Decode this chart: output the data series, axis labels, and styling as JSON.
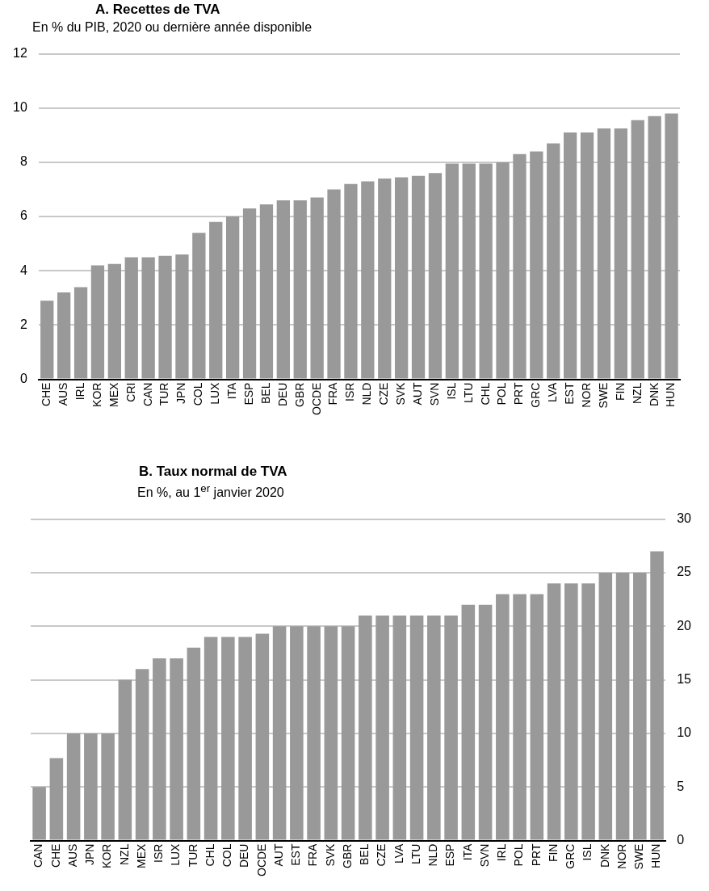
{
  "chart_data": [
    {
      "type": "bar",
      "title": "A. Recettes de TVA",
      "subtitle": "En % du PIB, 2020 ou dernière année disponible",
      "categories": [
        "CHE",
        "AUS",
        "IRL",
        "KOR",
        "MEX",
        "CRI",
        "CAN",
        "TUR",
        "JPN",
        "COL",
        "LUX",
        "ITA",
        "ESP",
        "BEL",
        "DEU",
        "GBR",
        "OCDE",
        "FRA",
        "ISR",
        "NLD",
        "CZE",
        "SVK",
        "AUT",
        "SVN",
        "ISL",
        "LTU",
        "CHL",
        "POL",
        "PRT",
        "GRC",
        "LVA",
        "EST",
        "NOR",
        "SWE",
        "FIN",
        "NZL",
        "DNK",
        "HUN"
      ],
      "series": [
        {
          "color": "#999999",
          "values": [
            2.9,
            3.2,
            3.4,
            4.2,
            4.25,
            4.5,
            4.5,
            4.55,
            4.6,
            5.4,
            5.8,
            6.0,
            6.3,
            6.45,
            6.6,
            6.6,
            6.7,
            7.0,
            7.2,
            7.3,
            7.4,
            7.45,
            7.5,
            7.6,
            7.95,
            7.95,
            7.95,
            8.0,
            8.3,
            8.4,
            8.7,
            9.1,
            9.1,
            9.25,
            9.25,
            9.55,
            9.7,
            9.8
          ]
        }
      ],
      "ylim": [
        0,
        12
      ],
      "yticks": [
        0,
        2,
        4,
        6,
        8,
        10,
        12
      ],
      "grid": "y"
    },
    {
      "type": "bar",
      "title": "B. Taux normal de TVA",
      "subtitle": "En %, au 1$^{er}$ janvier 2020",
      "categories": [
        "CAN",
        "CHE",
        "AUS",
        "JPN",
        "KOR",
        "NZL",
        "MEX",
        "ISR",
        "LUX",
        "TUR",
        "CHL",
        "COL",
        "DEU",
        "OCDE",
        "AUT",
        "EST",
        "FRA",
        "SVK",
        "GBR",
        "BEL",
        "CZE",
        "LVA",
        "LTU",
        "NLD",
        "ESP",
        "ITA",
        "SVN",
        "IRL",
        "POL",
        "PRT",
        "FIN",
        "GRC",
        "ISL",
        "DNK",
        "NOR",
        "SWE",
        "HUN"
      ],
      "series": [
        {
          "color": "#999999",
          "axis": "y2",
          "values": [
            5,
            7.7,
            10,
            10,
            10,
            15,
            16,
            17,
            17,
            18,
            19,
            19,
            19,
            19.3,
            20,
            20,
            20,
            20,
            20,
            21,
            21,
            21,
            21,
            21,
            21,
            22,
            22,
            23,
            23,
            23,
            24,
            24,
            24,
            25,
            25,
            25,
            27
          ]
        }
      ],
      "y2lim": [
        0,
        30
      ],
      "y2ticks": [
        0,
        5,
        10,
        15,
        20,
        25,
        30
      ],
      "grid": "y"
    }
  ]
}
